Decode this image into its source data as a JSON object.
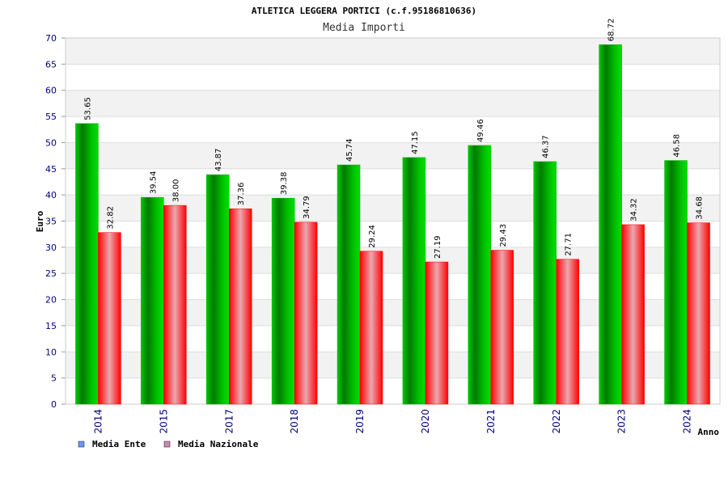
{
  "colors": {
    "series_ente": "#00b000",
    "series_nazionale": "#ff0000",
    "legend_ente": "#6699ff",
    "legend_nazionale": "#cc88aa",
    "tick_text": "#000080",
    "band": "#f2f2f2"
  },
  "chart_data": {
    "type": "bar",
    "title": "ATLETICA LEGGERA PORTICI (c.f.95186810636)",
    "subtitle": "Media Importi",
    "xlabel": "Anno",
    "ylabel": "Euro",
    "ylim": [
      0,
      70
    ],
    "yticks": [
      "0",
      "5",
      "10",
      "15",
      "20",
      "25",
      "30",
      "35",
      "40",
      "45",
      "50",
      "55",
      "60",
      "65",
      "70"
    ],
    "grid": true,
    "legend_position": "bottom-left",
    "categories": [
      "2014",
      "2015",
      "2017",
      "2018",
      "2019",
      "2020",
      "2021",
      "2022",
      "2023",
      "2024"
    ],
    "series": [
      {
        "name": "Media Ente",
        "values": [
          53.65,
          39.54,
          43.87,
          39.38,
          45.74,
          47.15,
          49.46,
          46.37,
          68.72,
          46.58
        ],
        "labels": [
          "53.65",
          "39.54",
          "43.87",
          "39.38",
          "45.74",
          "47.15",
          "49.46",
          "46.37",
          "68.72",
          "46.58"
        ]
      },
      {
        "name": "Media Nazionale",
        "values": [
          32.82,
          38.0,
          37.36,
          34.79,
          29.24,
          27.19,
          29.43,
          27.71,
          34.32,
          34.68
        ],
        "labels": [
          "32.82",
          "38.00",
          "37.36",
          "34.79",
          "29.24",
          "27.19",
          "29.43",
          "27.71",
          "34.32",
          "34.68"
        ]
      }
    ]
  }
}
